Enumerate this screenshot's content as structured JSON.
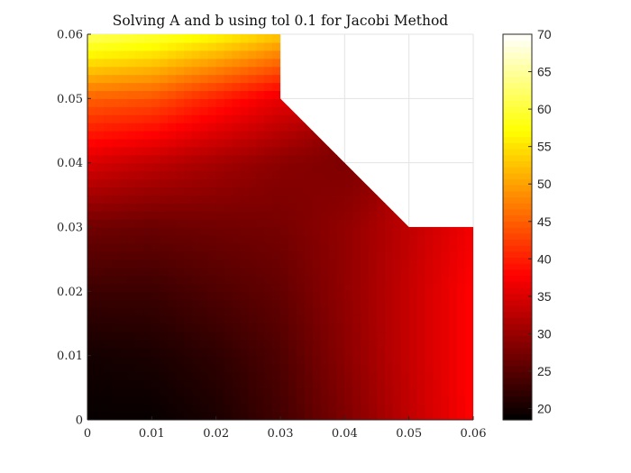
{
  "chart_data": {
    "type": "heatmap",
    "title": "Solving A and b using tol 0.1 for Jacobi Method",
    "xlabel": "",
    "ylabel": "",
    "xlim": [
      0,
      0.06
    ],
    "ylim": [
      0,
      0.06
    ],
    "x_ticks": [
      "0",
      "0.01",
      "0.02",
      "0.03",
      "0.04",
      "0.05",
      "0.06"
    ],
    "y_ticks": [
      "0",
      "0.01",
      "0.02",
      "0.03",
      "0.04",
      "0.05",
      "0.06"
    ],
    "grid": true,
    "colormap": "hot",
    "colorbar": {
      "limits": [
        18.5,
        70
      ],
      "ticks": [
        "20",
        "25",
        "30",
        "35",
        "40",
        "45",
        "50",
        "55",
        "60",
        "65",
        "70"
      ]
    },
    "domain_outline": [
      [
        0,
        0
      ],
      [
        0.06,
        0
      ],
      [
        0.06,
        0.03
      ],
      [
        0.05,
        0.03
      ],
      [
        0.03,
        0.05
      ],
      [
        0.03,
        0.06
      ],
      [
        0,
        0.06
      ]
    ],
    "grid_x": [
      0,
      0.01,
      0.02,
      0.03,
      0.04,
      0.05,
      0.06
    ],
    "grid_y": [
      0,
      0.01,
      0.02,
      0.03,
      0.04,
      0.05,
      0.06
    ],
    "values": [
      [
        19,
        19,
        20.5,
        23.5,
        28,
        33,
        38
      ],
      [
        20,
        20.5,
        22,
        24.5,
        29,
        33.5,
        38
      ],
      [
        23,
        23,
        24.5,
        26,
        29.5,
        33.5,
        38
      ],
      [
        27,
        26.5,
        27,
        27.5,
        29.5,
        33,
        37
      ],
      [
        35,
        33,
        31,
        29,
        28,
        null,
        null
      ],
      [
        45,
        44,
        40,
        36,
        null,
        null,
        null
      ],
      [
        62,
        60,
        57,
        53,
        null,
        null,
        null
      ]
    ]
  }
}
